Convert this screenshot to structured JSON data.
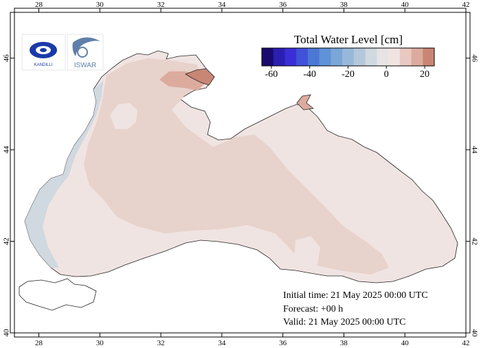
{
  "map": {
    "lon_labels": [
      "28",
      "30",
      "32",
      "34",
      "36",
      "38",
      "40",
      "42"
    ],
    "lat_labels": [
      "40",
      "42",
      "44",
      "46"
    ],
    "lon_values": [
      28,
      30,
      32,
      34,
      36,
      38,
      40,
      42
    ],
    "lat_values": [
      40,
      42,
      44,
      46
    ],
    "lon_range": [
      27.2,
      42.0
    ],
    "lat_range": [
      40.0,
      47.0
    ]
  },
  "legend": {
    "title": "Total Water Level [cm]",
    "tick_labels": [
      "-60",
      "-40",
      "-20",
      "0",
      "20"
    ],
    "tick_values": [
      -60,
      -40,
      -20,
      0,
      20
    ],
    "range": [
      -65,
      25
    ],
    "colors": [
      "#1a0a6e",
      "#2a1fb0",
      "#3a2fd6",
      "#3f52d8",
      "#4a78d4",
      "#5f92d6",
      "#7aa6d8",
      "#98b8db",
      "#b5c7db",
      "#d0d8e0",
      "#e6e4e4",
      "#f0e4e2",
      "#e8c8c0",
      "#dcab9e",
      "#c98675"
    ]
  },
  "logos": {
    "left": {
      "name": "kandilli-logo",
      "text": "KANDILLI"
    },
    "right": {
      "name": "iswar-logo",
      "text": "ISWAR"
    }
  },
  "info": {
    "initial_time": "Initial time: 21 May 2025 00:00 UTC",
    "forecast": "Forecast: +00 h",
    "valid": "Valid: 21 May 2025 00:00 UTC"
  }
}
